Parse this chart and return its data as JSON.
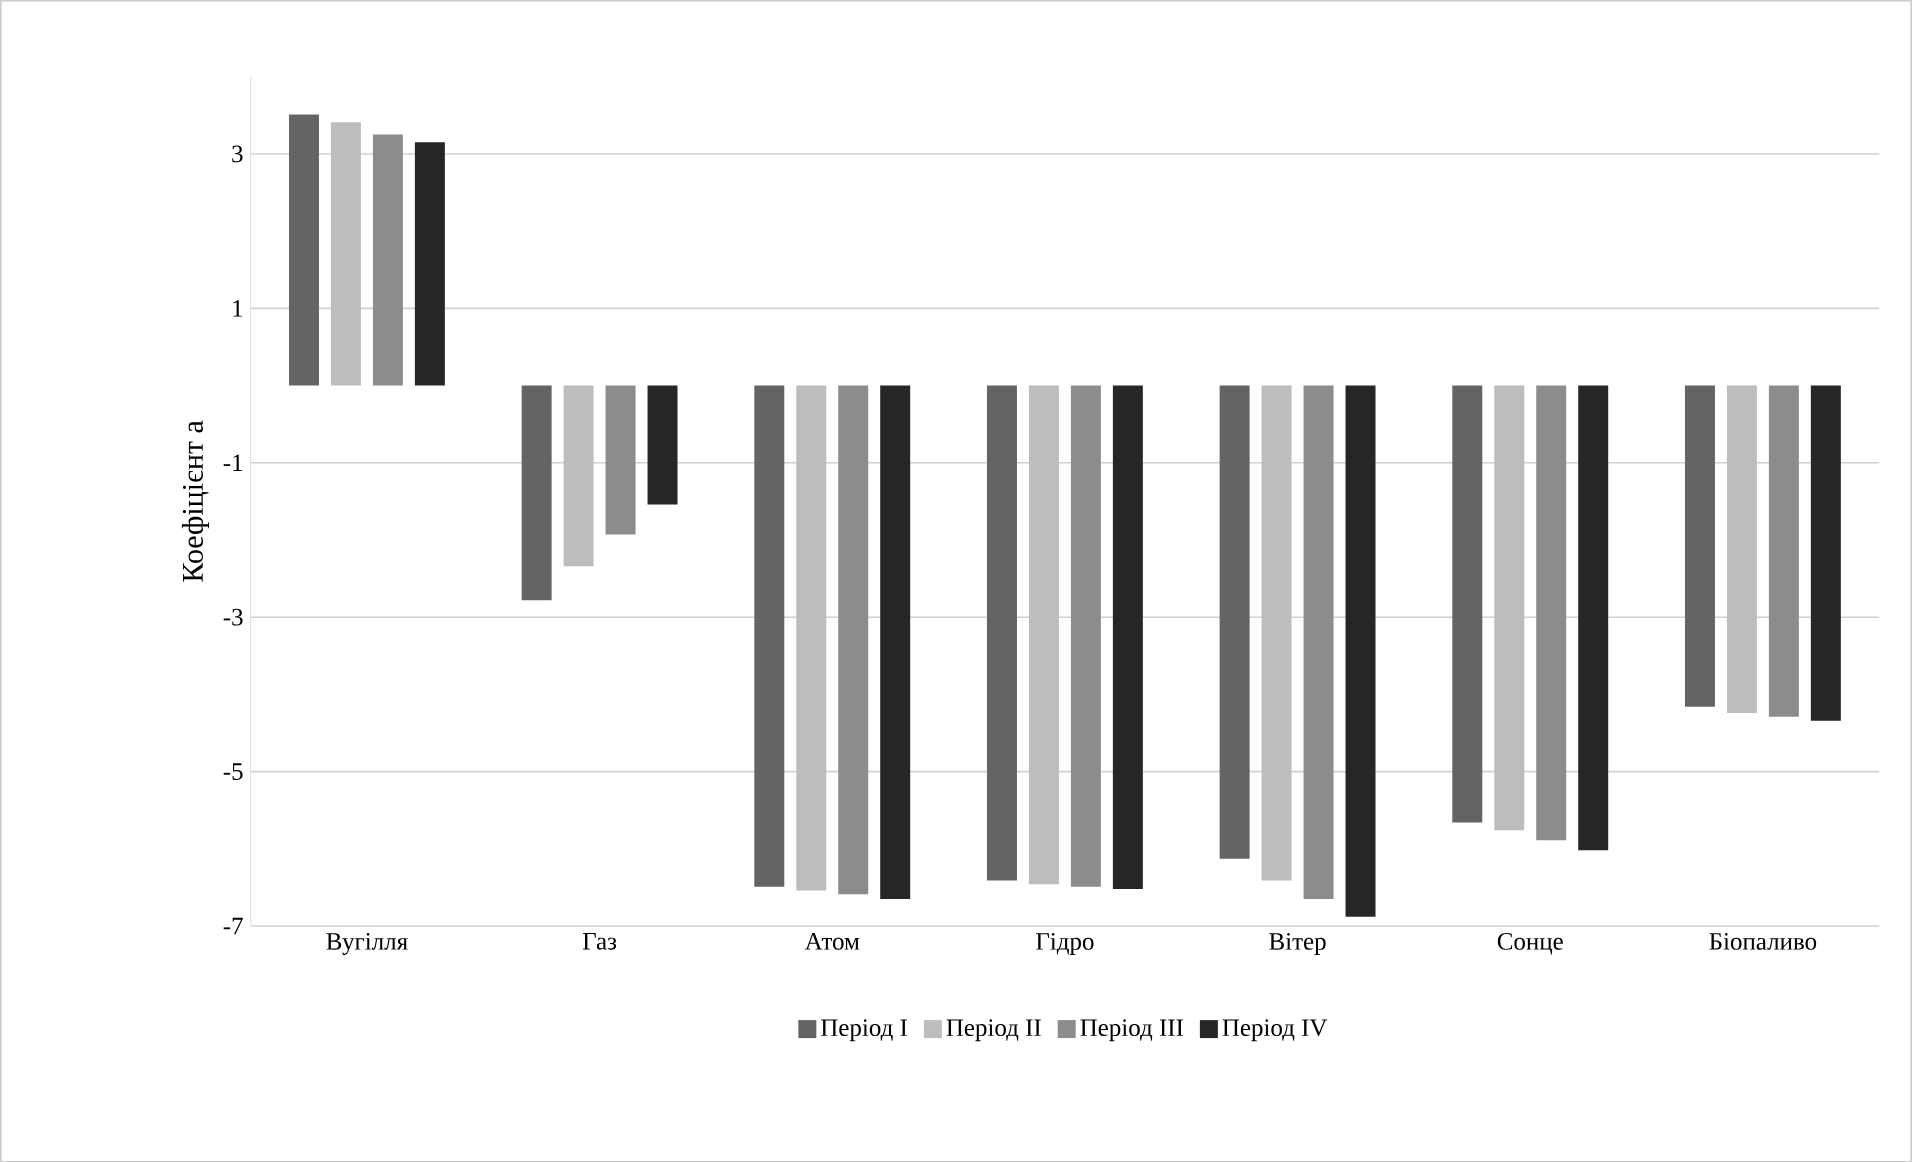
{
  "chart_data": {
    "type": "bar",
    "ylabel": "Коефіцієнт a",
    "categories": [
      "Вугілля",
      "Газ",
      "Атом",
      "Гідро",
      "Вітер",
      "Сонце",
      "Біопаливо"
    ],
    "series": [
      {
        "name": "Період I",
        "color": "#646464",
        "values": [
          3.51,
          -2.78,
          -6.49,
          -6.41,
          -6.13,
          -5.66,
          -4.16
        ]
      },
      {
        "name": "Період II",
        "color": "#bdbdbd",
        "values": [
          3.41,
          -2.34,
          -6.54,
          -6.46,
          -6.41,
          -5.76,
          -4.24
        ]
      },
      {
        "name": "Період III",
        "color": "#8c8c8c",
        "values": [
          3.25,
          -1.93,
          -6.59,
          -6.49,
          -6.65,
          -5.89,
          -4.29
        ]
      },
      {
        "name": "Період IV",
        "color": "#262626",
        "values": [
          3.15,
          -1.54,
          -6.65,
          -6.52,
          -6.88,
          -6.02,
          -4.34
        ]
      }
    ],
    "ylim": [
      -7,
      4
    ],
    "yticks": [
      -7,
      -5,
      -3,
      -1,
      1,
      3
    ],
    "grid": "y",
    "legend": "bottom"
  }
}
